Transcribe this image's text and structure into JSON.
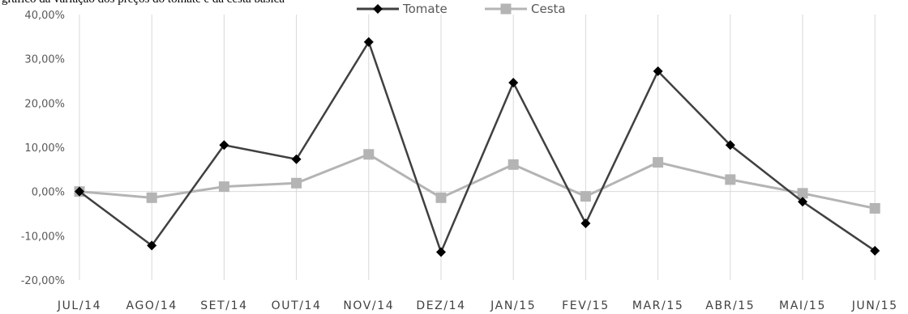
{
  "caption": "gráfico da variação dos preços do tomate e da cesta básica",
  "chart_data": {
    "type": "line",
    "categories": [
      "JUL/14",
      "AGO/14",
      "SET/14",
      "OUT/14",
      "NOV/14",
      "DEZ/14",
      "JAN/15",
      "FEV/15",
      "MAR/15",
      "ABR/15",
      "MAI/15",
      "JUN/15"
    ],
    "series": [
      {
        "name": "Tomate",
        "values": [
          0.0,
          -12.2,
          10.5,
          7.3,
          33.8,
          -13.7,
          24.6,
          -7.2,
          27.2,
          10.5,
          -2.3,
          -13.4
        ],
        "color": "#404040",
        "marker": "diamond"
      },
      {
        "name": "Cesta",
        "values": [
          0.0,
          -1.4,
          1.1,
          1.9,
          8.4,
          -1.4,
          6.1,
          -1.1,
          6.6,
          2.7,
          -0.4,
          -3.8
        ],
        "color": "#b4b4b4",
        "marker": "square"
      }
    ],
    "ylim": [
      -20,
      40
    ],
    "y_ticks": [
      "-20,00%",
      "-10,00%",
      "0,00%",
      "10,00%",
      "20,00%",
      "30,00%",
      "40,00%"
    ],
    "y_tick_values": [
      -20,
      -10,
      0,
      10,
      20,
      30,
      40
    ],
    "grid": "vertical",
    "legend_position": "top-center"
  }
}
